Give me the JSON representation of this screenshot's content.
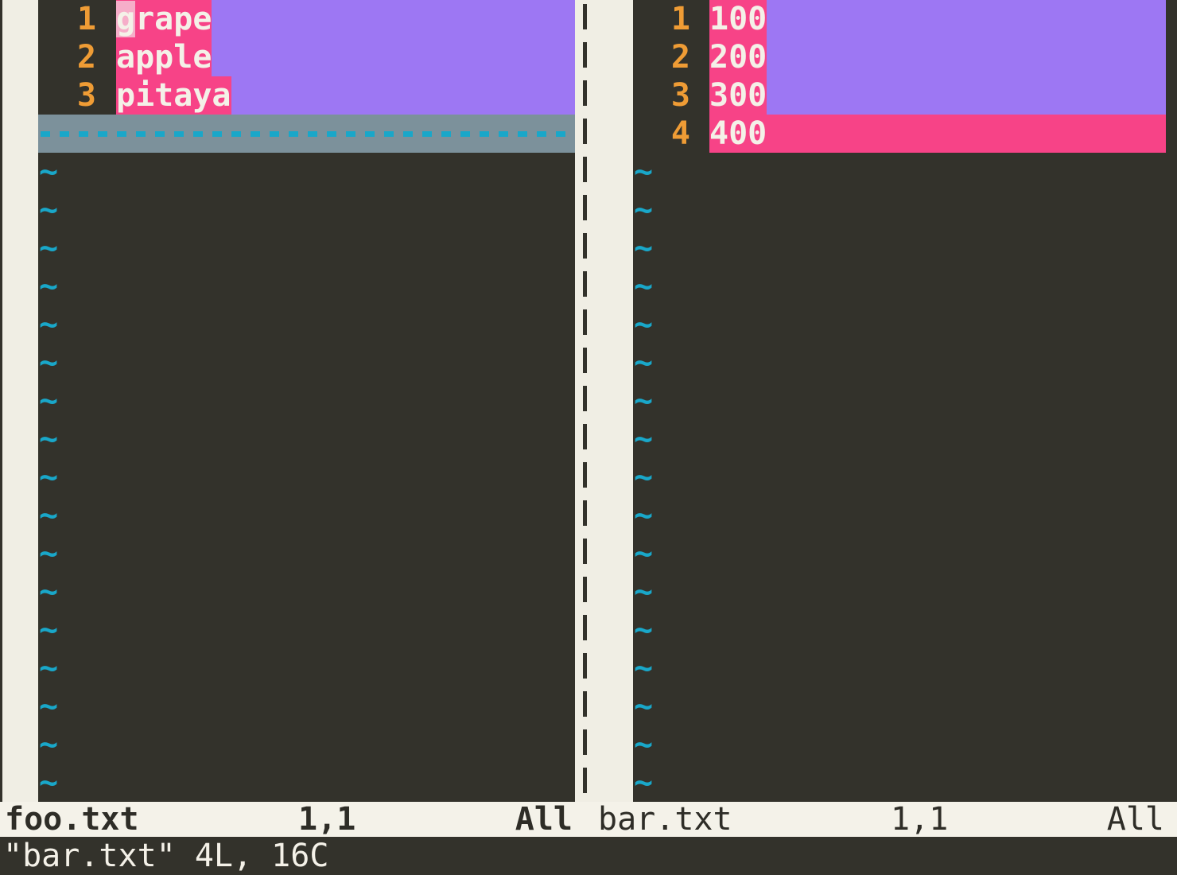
{
  "app": "vimdiff",
  "colors": {
    "background": "#33322b",
    "fold_column": "#f0eee4",
    "statusline_bg": "#f4f2e9",
    "statusline_fg": "#2e2d27",
    "diff_text_pink": "#f74387",
    "diff_change_purple": "#9d77f3",
    "diff_delete_filler_gray": "#7c919b",
    "cursor_cell_pink": "#f6aec9",
    "line_number_orange": "#ef9c35",
    "nontext_cyan": "#19a7c9",
    "text_white": "#f4f1e8"
  },
  "left_pane": {
    "lines": [
      {
        "num": "1",
        "cursor_char": "g",
        "text_rest": "rape",
        "full_text": "grape"
      },
      {
        "num": "2",
        "text": "apple"
      },
      {
        "num": "3",
        "text": "pitaya"
      }
    ],
    "status": {
      "file": "foo.txt",
      "position": "1,1",
      "scroll": "All"
    }
  },
  "right_pane": {
    "lines": [
      {
        "num": "1",
        "text": "100"
      },
      {
        "num": "2",
        "text": "200"
      },
      {
        "num": "3",
        "text": "300"
      },
      {
        "num": "4",
        "text": "400",
        "added": true
      }
    ],
    "status": {
      "file": "bar.txt",
      "position": "1,1",
      "scroll": "All"
    }
  },
  "tilde_char": "~",
  "command_line": {
    "message": "\"bar.txt\" 4L, 16C"
  }
}
